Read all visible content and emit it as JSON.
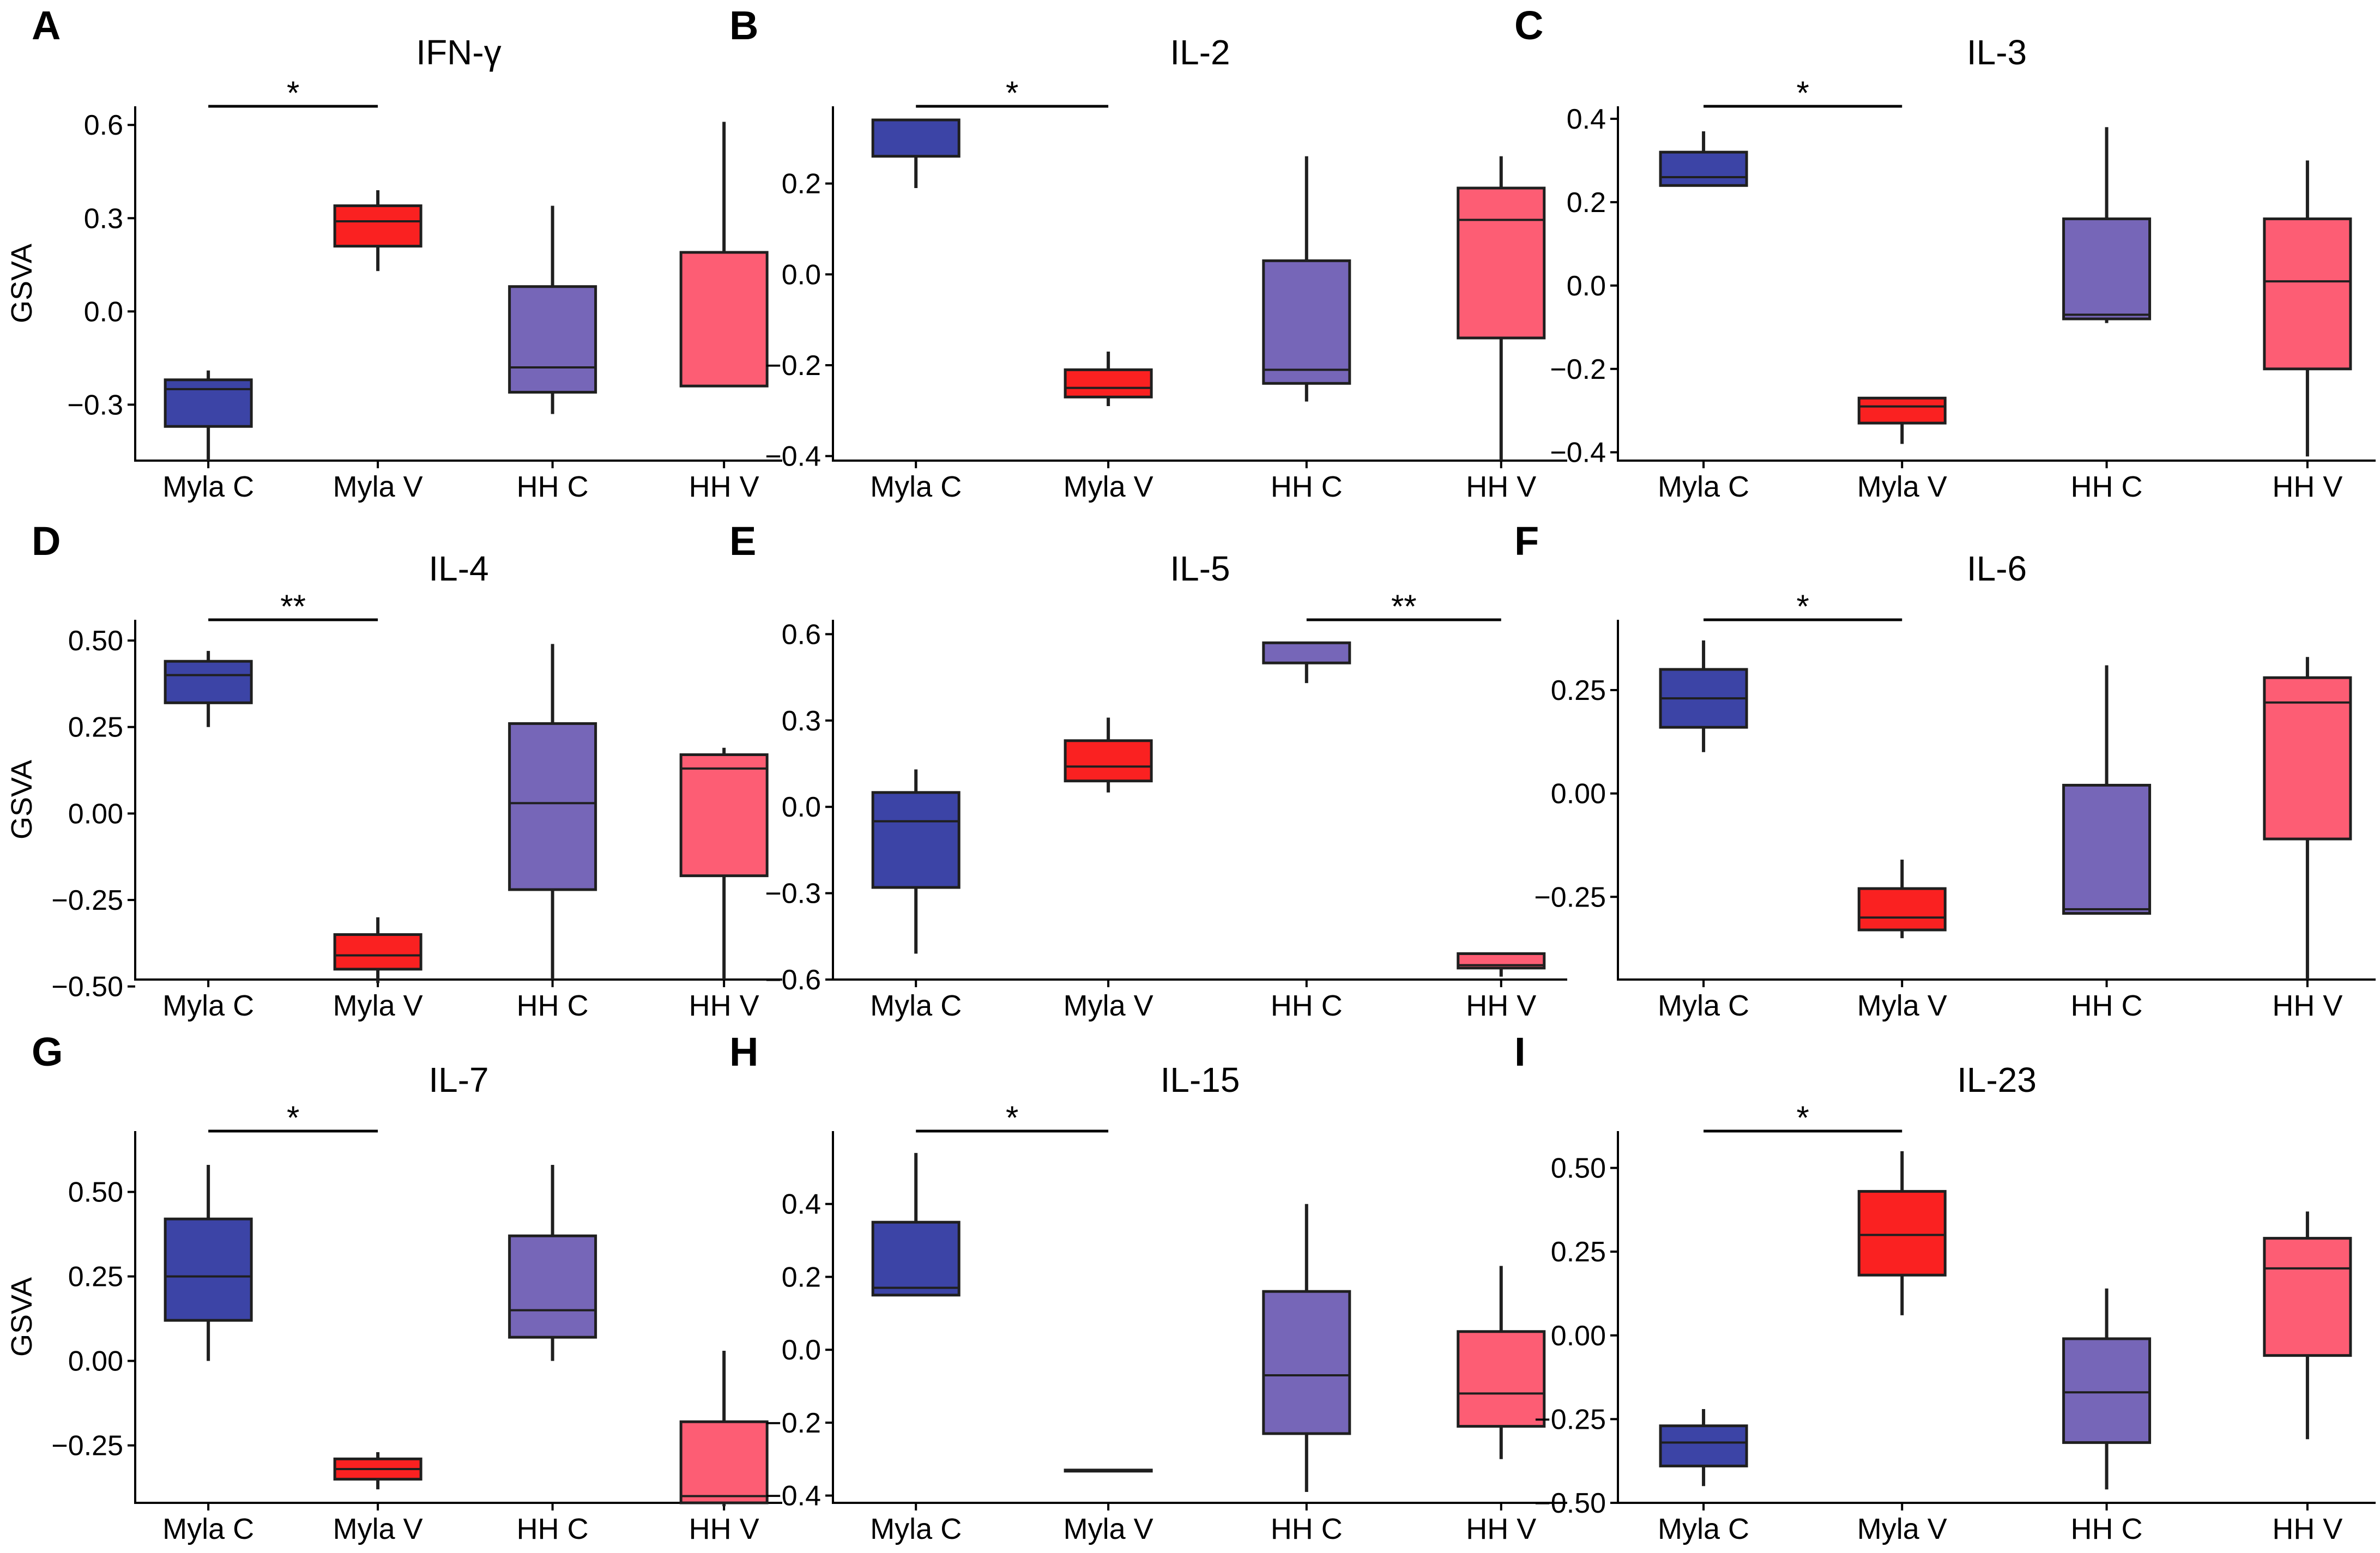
{
  "figure": {
    "colors": {
      "myla_c": "#3c44a6",
      "myla_v": "#fa2121",
      "hh_c": "#7666b8",
      "hh_v": "#fd5d74",
      "line": "#1f1f1f"
    },
    "categories": [
      "Myla C",
      "Myla V",
      "HH C",
      "HH V"
    ],
    "series_keys": [
      "myla_c",
      "myla_v",
      "hh_c",
      "hh_v"
    ]
  },
  "chart_data": [
    {
      "letter": "A",
      "type": "box",
      "title": "IFN-γ",
      "xlabel": "",
      "ylabel": "GSVA",
      "categories": [
        "Myla C",
        "Myla V",
        "HH C",
        "HH V"
      ],
      "ylim": [
        -0.48,
        0.66
      ],
      "ticks": [
        -0.3,
        0.0,
        0.3,
        0.6
      ],
      "tick_labels": [
        "−0.3",
        "0.0",
        "0.3",
        "0.6"
      ],
      "boxes": [
        {
          "min": -0.48,
          "q1": -0.37,
          "median": -0.25,
          "q3": -0.22,
          "max": -0.19
        },
        {
          "min": 0.13,
          "q1": 0.21,
          "median": 0.29,
          "q3": 0.34,
          "max": 0.39
        },
        {
          "min": -0.33,
          "q1": -0.26,
          "median": -0.18,
          "q3": 0.08,
          "max": 0.34
        },
        {
          "min": -0.24,
          "q1": -0.24,
          "median": -0.24,
          "q3": 0.19,
          "max": 0.61
        }
      ],
      "significance": [
        {
          "from": 0,
          "to": 1,
          "label": "*",
          "y": 0.66
        }
      ]
    },
    {
      "letter": "B",
      "type": "box",
      "title": "IL-2",
      "xlabel": "",
      "ylabel": "",
      "categories": [
        "Myla C",
        "Myla V",
        "HH C",
        "HH V"
      ],
      "ylim": [
        -0.41,
        0.37
      ],
      "ticks": [
        -0.4,
        -0.2,
        0.0,
        0.2
      ],
      "tick_labels": [
        "−0.4",
        "−0.2",
        "0.0",
        "0.2"
      ],
      "boxes": [
        {
          "min": 0.19,
          "q1": 0.26,
          "median": 0.26,
          "q3": 0.34,
          "max": 0.34
        },
        {
          "min": -0.29,
          "q1": -0.27,
          "median": -0.25,
          "q3": -0.21,
          "max": -0.17
        },
        {
          "min": -0.28,
          "q1": -0.24,
          "median": -0.21,
          "q3": 0.03,
          "max": 0.26
        },
        {
          "min": -0.41,
          "q1": -0.14,
          "median": 0.12,
          "q3": 0.19,
          "max": 0.26
        }
      ],
      "significance": [
        {
          "from": 0,
          "to": 1,
          "label": "*",
          "y": 0.37
        }
      ]
    },
    {
      "letter": "C",
      "type": "box",
      "title": "IL-3",
      "xlabel": "",
      "ylabel": "",
      "categories": [
        "Myla C",
        "Myla V",
        "HH C",
        "HH V"
      ],
      "ylim": [
        -0.42,
        0.43
      ],
      "ticks": [
        -0.4,
        -0.2,
        0.0,
        0.2,
        0.4
      ],
      "tick_labels": [
        "−0.4",
        "−0.2",
        "0.0",
        "0.2",
        "0.4"
      ],
      "boxes": [
        {
          "min": 0.24,
          "q1": 0.24,
          "median": 0.26,
          "q3": 0.32,
          "max": 0.37
        },
        {
          "min": -0.38,
          "q1": -0.33,
          "median": -0.29,
          "q3": -0.27,
          "max": -0.27
        },
        {
          "min": -0.09,
          "q1": -0.08,
          "median": -0.07,
          "q3": 0.16,
          "max": 0.38
        },
        {
          "min": -0.41,
          "q1": -0.2,
          "median": 0.01,
          "q3": 0.16,
          "max": 0.3
        }
      ],
      "significance": [
        {
          "from": 0,
          "to": 1,
          "label": "*",
          "y": 0.43
        }
      ]
    },
    {
      "letter": "D",
      "type": "box",
      "title": "IL-4",
      "xlabel": "",
      "ylabel": "GSVA",
      "categories": [
        "Myla C",
        "Myla V",
        "HH C",
        "HH V"
      ],
      "ylim": [
        -0.48,
        0.56
      ],
      "ticks": [
        -0.5,
        -0.25,
        0.0,
        0.25,
        0.5
      ],
      "tick_labels": [
        "−0.50",
        "−0.25",
        "0.00",
        "0.25",
        "0.50"
      ],
      "boxes": [
        {
          "min": 0.25,
          "q1": 0.32,
          "median": 0.4,
          "q3": 0.44,
          "max": 0.47
        },
        {
          "min": -0.49,
          "q1": -0.45,
          "median": -0.41,
          "q3": -0.35,
          "max": -0.3
        },
        {
          "min": -0.48,
          "q1": -0.22,
          "median": 0.03,
          "q3": 0.26,
          "max": 0.49
        },
        {
          "min": -0.48,
          "q1": -0.18,
          "median": 0.13,
          "q3": 0.17,
          "max": 0.19
        }
      ],
      "significance": [
        {
          "from": 0,
          "to": 1,
          "label": "**",
          "y": 0.56
        }
      ]
    },
    {
      "letter": "E",
      "type": "box",
      "title": "IL-5",
      "xlabel": "",
      "ylabel": "",
      "categories": [
        "Myla C",
        "Myla V",
        "HH C",
        "HH V"
      ],
      "ylim": [
        -0.6,
        0.65
      ],
      "ticks": [
        -0.6,
        -0.3,
        0.0,
        0.3,
        0.6
      ],
      "tick_labels": [
        "−0.6",
        "−0.3",
        "0.0",
        "0.3",
        "0.6"
      ],
      "boxes": [
        {
          "min": -0.51,
          "q1": -0.28,
          "median": -0.05,
          "q3": 0.05,
          "max": 0.13
        },
        {
          "min": 0.05,
          "q1": 0.09,
          "median": 0.14,
          "q3": 0.23,
          "max": 0.31
        },
        {
          "min": 0.43,
          "q1": 0.5,
          "median": 0.5,
          "q3": 0.57,
          "max": 0.57
        },
        {
          "min": -0.59,
          "q1": -0.56,
          "median": -0.55,
          "q3": -0.51,
          "max": -0.51
        }
      ],
      "significance": [
        {
          "from": 2,
          "to": 3,
          "label": "**",
          "y": 0.65
        }
      ]
    },
    {
      "letter": "F",
      "type": "box",
      "title": "IL-6",
      "xlabel": "",
      "ylabel": "",
      "categories": [
        "Myla C",
        "Myla V",
        "HH C",
        "HH V"
      ],
      "ylim": [
        -0.45,
        0.42
      ],
      "ticks": [
        -0.25,
        0.0,
        0.25
      ],
      "tick_labels": [
        "−0.25",
        "0.00",
        "0.25"
      ],
      "boxes": [
        {
          "min": 0.1,
          "q1": 0.16,
          "median": 0.23,
          "q3": 0.3,
          "max": 0.37
        },
        {
          "min": -0.35,
          "q1": -0.33,
          "median": -0.3,
          "q3": -0.23,
          "max": -0.16
        },
        {
          "min": -0.29,
          "q1": -0.29,
          "median": -0.28,
          "q3": 0.02,
          "max": 0.31
        },
        {
          "min": -0.45,
          "q1": -0.11,
          "median": 0.22,
          "q3": 0.28,
          "max": 0.33
        }
      ],
      "significance": [
        {
          "from": 0,
          "to": 1,
          "label": "*",
          "y": 0.42
        }
      ]
    },
    {
      "letter": "G",
      "type": "box",
      "title": "IL-7",
      "xlabel": "",
      "ylabel": "GSVA",
      "categories": [
        "Myla C",
        "Myla V",
        "HH C",
        "HH V"
      ],
      "ylim": [
        -0.42,
        0.68
      ],
      "ticks": [
        -0.25,
        0.0,
        0.25,
        0.5
      ],
      "tick_labels": [
        "−0.25",
        "0.00",
        "0.25",
        "0.50"
      ],
      "boxes": [
        {
          "min": 0.0,
          "q1": 0.12,
          "median": 0.25,
          "q3": 0.42,
          "max": 0.58
        },
        {
          "min": -0.38,
          "q1": -0.35,
          "median": -0.32,
          "q3": -0.29,
          "max": -0.27
        },
        {
          "min": 0.0,
          "q1": 0.07,
          "median": 0.15,
          "q3": 0.37,
          "max": 0.58
        },
        {
          "min": -0.43,
          "q1": -0.42,
          "median": -0.4,
          "q3": -0.18,
          "max": 0.03
        }
      ],
      "significance": [
        {
          "from": 0,
          "to": 1,
          "label": "*",
          "y": 0.68
        }
      ]
    },
    {
      "letter": "H",
      "type": "box",
      "title": "IL-15",
      "xlabel": "",
      "ylabel": "",
      "categories": [
        "Myla C",
        "Myla V",
        "HH C",
        "HH V"
      ],
      "ylim": [
        -0.42,
        0.6
      ],
      "ticks": [
        -0.4,
        -0.2,
        0.0,
        0.2,
        0.4
      ],
      "tick_labels": [
        "−0.4",
        "−0.2",
        "0.0",
        "0.2",
        "0.4"
      ],
      "boxes": [
        {
          "min": 0.15,
          "q1": 0.15,
          "median": 0.17,
          "q3": 0.35,
          "max": 0.54
        },
        {
          "min": -0.33,
          "q1": -0.33,
          "median": -0.33,
          "q3": -0.33,
          "max": -0.33
        },
        {
          "min": -0.39,
          "q1": -0.23,
          "median": -0.07,
          "q3": 0.16,
          "max": 0.4
        },
        {
          "min": -0.3,
          "q1": -0.21,
          "median": -0.12,
          "q3": 0.05,
          "max": 0.23
        }
      ],
      "significance": [
        {
          "from": 0,
          "to": 1,
          "label": "*",
          "y": 0.6
        }
      ]
    },
    {
      "letter": "I",
      "type": "box",
      "title": "IL-23",
      "xlabel": "",
      "ylabel": "",
      "categories": [
        "Myla C",
        "Myla V",
        "HH C",
        "HH V"
      ],
      "ylim": [
        -0.5,
        0.61
      ],
      "ticks": [
        -0.5,
        -0.25,
        0.0,
        0.25,
        0.5
      ],
      "tick_labels": [
        "−0.50",
        "−0.25",
        "0.00",
        "0.25",
        "0.50"
      ],
      "boxes": [
        {
          "min": -0.45,
          "q1": -0.39,
          "median": -0.32,
          "q3": -0.27,
          "max": -0.22
        },
        {
          "min": 0.06,
          "q1": 0.18,
          "median": 0.3,
          "q3": 0.43,
          "max": 0.55
        },
        {
          "min": -0.46,
          "q1": -0.32,
          "median": -0.17,
          "q3": -0.01,
          "max": 0.14
        },
        {
          "min": -0.31,
          "q1": -0.06,
          "median": 0.2,
          "q3": 0.29,
          "max": 0.37
        }
      ],
      "significance": [
        {
          "from": 0,
          "to": 1,
          "label": "*",
          "y": 0.61
        }
      ]
    }
  ]
}
